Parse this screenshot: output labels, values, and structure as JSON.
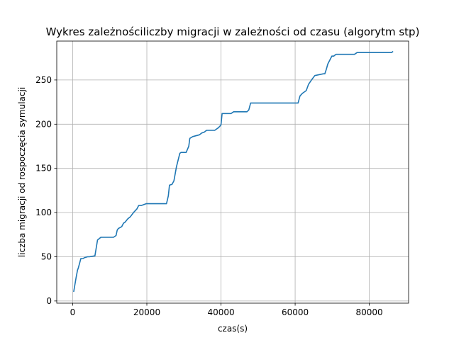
{
  "chart_data": {
    "type": "line",
    "title": "Wykres zależnościliczby migracji w zależności od czasu (algorytm stp)",
    "xlabel": "czas(s)",
    "ylabel": "liczba migracji od rospoczęcia symulacji",
    "xlim": [
      -4300,
      90600
    ],
    "ylim": [
      -2.5,
      294
    ],
    "xticks": [
      0,
      20000,
      40000,
      60000,
      80000
    ],
    "yticks": [
      0,
      50,
      100,
      150,
      200,
      250
    ],
    "grid": true,
    "series": [
      {
        "color": "#1f77b4",
        "x": [
          300,
          900,
          1300,
          1500,
          2200,
          2400,
          2800,
          3200,
          4000,
          4500,
          6000,
          6700,
          7000,
          7600,
          8000,
          11000,
          11700,
          12000,
          12300,
          13200,
          13700,
          14100,
          14900,
          15500,
          16400,
          17300,
          17800,
          18500,
          19800,
          20200,
          25300,
          25800,
          26100,
          26800,
          27300,
          28000,
          28900,
          29200,
          30600,
          31300,
          31600,
          32400,
          34200,
          34800,
          35500,
          36100,
          38300,
          39300,
          40000,
          40300,
          42700,
          43400,
          47000,
          47500,
          48000,
          60000,
          60800,
          61300,
          62000,
          63000,
          63600,
          64400,
          65300,
          67600,
          68000,
          68400,
          68800,
          69900,
          70400,
          71000,
          76000,
          76700,
          86000,
          86300
        ],
        "y": [
          11,
          26,
          35,
          37,
          48,
          48,
          48,
          49,
          50,
          50,
          51,
          69,
          70,
          72,
          72,
          72,
          74,
          80,
          82,
          84,
          88,
          89,
          93,
          95,
          100,
          104,
          108,
          108,
          110,
          110,
          110,
          119,
          131,
          132,
          136,
          152,
          167,
          168,
          168,
          175,
          184,
          186,
          188,
          190,
          191,
          193,
          193,
          196,
          199,
          212,
          212,
          214,
          214,
          216,
          224,
          224,
          224,
          232,
          235,
          238,
          245,
          250,
          255,
          257,
          257,
          262,
          268,
          277,
          277,
          279,
          279,
          281,
          281,
          282
        ]
      }
    ]
  }
}
